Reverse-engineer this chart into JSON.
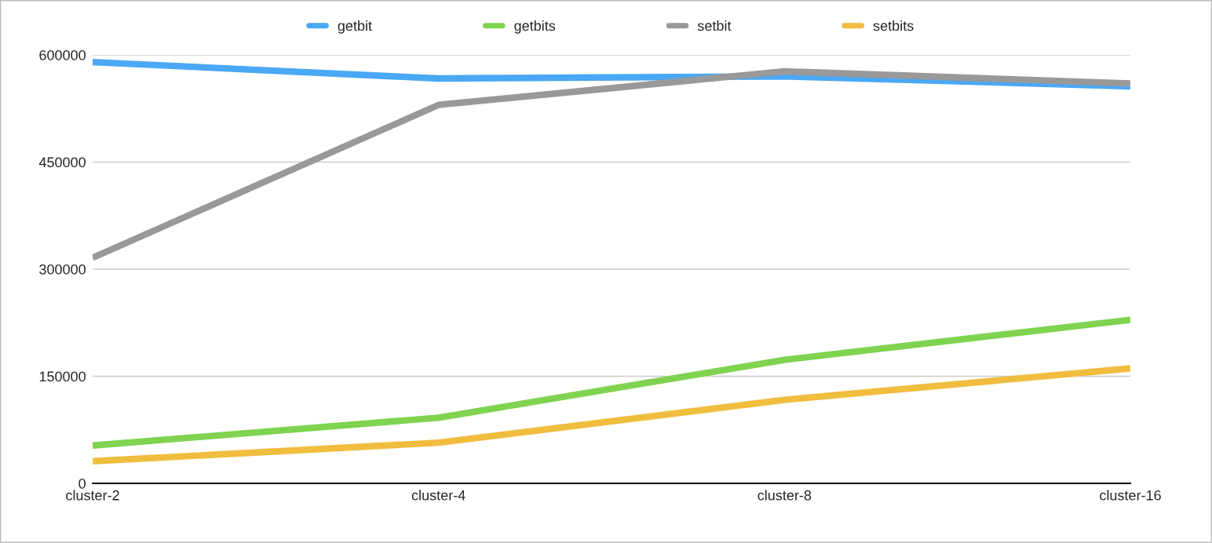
{
  "chart_data": {
    "type": "line",
    "categories": [
      "cluster-2",
      "cluster-4",
      "cluster-8",
      "cluster-16"
    ],
    "series": [
      {
        "name": "getbit",
        "color": "#4aa8f5",
        "values": [
          590000,
          567000,
          570000,
          556000
        ]
      },
      {
        "name": "getbits",
        "color": "#7fd350",
        "values": [
          53000,
          92000,
          173000,
          229000
        ]
      },
      {
        "name": "setbit",
        "color": "#999999",
        "values": [
          316000,
          530000,
          577000,
          560000
        ]
      },
      {
        "name": "setbits",
        "color": "#f0bd3e",
        "values": [
          31000,
          57000,
          117000,
          161000
        ]
      }
    ],
    "ylim": [
      0,
      600000
    ],
    "yticks": [
      0,
      150000,
      300000,
      450000,
      600000
    ],
    "grid": "y",
    "legend": "top",
    "marker": "none",
    "line_style": "solid"
  }
}
